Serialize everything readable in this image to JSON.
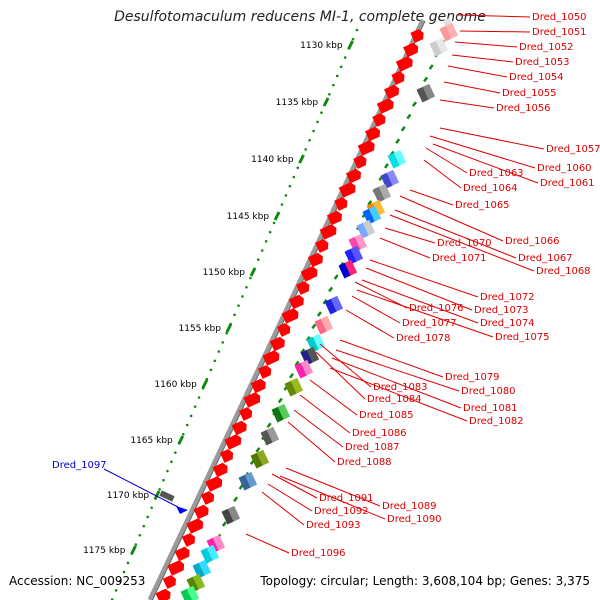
{
  "title": "Desulfotomaculum reducens MI-1, complete genome",
  "footer": {
    "accession": "Accession: NC_009253",
    "summary": "Topology: circular; Length: 3,608,104 bp; Genes: 3,375"
  },
  "ruler_labels": [
    "1130 kbp",
    "1135 kbp",
    "1140 kbp",
    "1145 kbp",
    "1150 kbp",
    "1155 kbp",
    "1160 kbp",
    "1165 kbp",
    "1170 kbp",
    "1175 kbp"
  ],
  "gene_labels": [
    "Dred_1050",
    "Dred_1051",
    "Dred_1052",
    "Dred_1053",
    "Dred_1054",
    "Dred_1055",
    "Dred_1056",
    "Dred_1057",
    "Dred_1060",
    "Dred_1061",
    "Dred_1063",
    "Dred_1064",
    "Dred_1065",
    "Dred_1066",
    "Dred_1067",
    "Dred_1068",
    "Dred_1070",
    "Dred_1071",
    "Dred_1072",
    "Dred_1073",
    "Dred_1074",
    "Dred_1075",
    "Dred_1076",
    "Dred_1077",
    "Dred_1078",
    "Dred_1079",
    "Dred_1080",
    "Dred_1081",
    "Dred_1082",
    "Dred_1083",
    "Dred_1084",
    "Dred_1085",
    "Dred_1086",
    "Dred_1087",
    "Dred_1088",
    "Dred_1089",
    "Dred_1090",
    "Dred_1091",
    "Dred_1092",
    "Dred_1093",
    "Dred_1096"
  ],
  "highlight_label": "Dred_1097",
  "colors": {
    "label_red": "#dd0000",
    "highlight_blue": "#0000cc",
    "ruler_green": "#118811",
    "backbone_gray": "#888888",
    "gene_red": "#ff0000"
  }
}
